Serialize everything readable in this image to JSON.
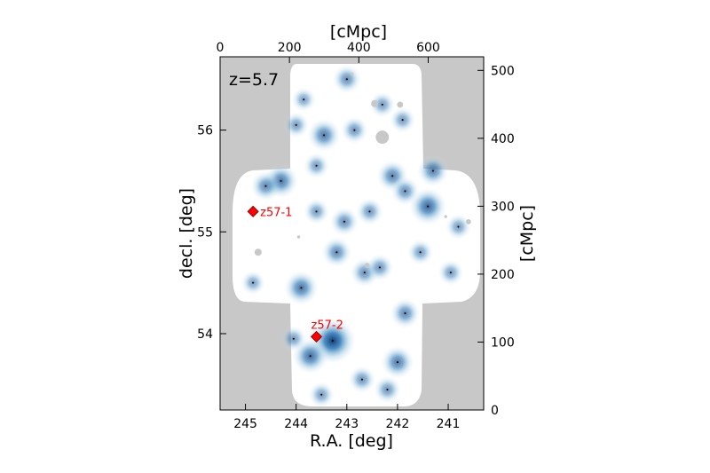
{
  "chart_data": {
    "type": "heatmap",
    "annotation": "z=5.7",
    "xlabel": "R.A. [deg]",
    "ylabel": "decl. [deg]",
    "x2label": "[cMpc]",
    "y2label": "[cMpc]",
    "xlim": [
      245.5,
      240.3
    ],
    "ylim": [
      53.25,
      56.72
    ],
    "x2lim": [
      0,
      760
    ],
    "y2lim": [
      0,
      520
    ],
    "x_ticks": [
      {
        "v": 245,
        "label": "245"
      },
      {
        "v": 244,
        "label": "244"
      },
      {
        "v": 243,
        "label": "243"
      },
      {
        "v": 242,
        "label": "242"
      },
      {
        "v": 241,
        "label": "241"
      }
    ],
    "y_ticks": [
      {
        "v": 54,
        "label": "54"
      },
      {
        "v": 55,
        "label": "55"
      },
      {
        "v": 56,
        "label": "56"
      }
    ],
    "x2_ticks": [
      {
        "v": 0,
        "label": "0"
      },
      {
        "v": 200,
        "label": "200"
      },
      {
        "v": 400,
        "label": "400"
      },
      {
        "v": 600,
        "label": "600"
      }
    ],
    "y2_ticks": [
      {
        "v": 0,
        "label": "0"
      },
      {
        "v": 100,
        "label": "100"
      },
      {
        "v": 200,
        "label": "200"
      },
      {
        "v": 300,
        "label": "300"
      },
      {
        "v": 400,
        "label": "400"
      },
      {
        "v": 500,
        "label": "500"
      }
    ],
    "highlighted_sources": [
      {
        "label": "z57-1",
        "ra": 244.85,
        "dec": 55.2,
        "color": "#ff0000"
      },
      {
        "label": "z57-2",
        "ra": 243.6,
        "dec": 53.97,
        "color": "#ff0000"
      }
    ],
    "density_peaks": [
      {
        "ra": 243.28,
        "dec": 53.93,
        "strength": 1.0
      },
      {
        "ra": 243.72,
        "dec": 53.78,
        "strength": 0.65
      },
      {
        "ra": 242.0,
        "dec": 53.72,
        "strength": 0.55
      },
      {
        "ra": 243.9,
        "dec": 54.45,
        "strength": 0.6
      },
      {
        "ra": 241.4,
        "dec": 55.25,
        "strength": 0.7
      },
      {
        "ra": 241.3,
        "dec": 55.6,
        "strength": 0.5
      },
      {
        "ra": 244.3,
        "dec": 55.5,
        "strength": 0.6
      },
      {
        "ra": 244.6,
        "dec": 55.45,
        "strength": 0.45
      },
      {
        "ra": 243.45,
        "dec": 55.95,
        "strength": 0.55
      },
      {
        "ra": 242.1,
        "dec": 55.55,
        "strength": 0.5
      },
      {
        "ra": 241.85,
        "dec": 55.4,
        "strength": 0.4
      },
      {
        "ra": 243.2,
        "dec": 54.8,
        "strength": 0.45
      },
      {
        "ra": 242.65,
        "dec": 54.6,
        "strength": 0.4
      },
      {
        "ra": 241.85,
        "dec": 54.2,
        "strength": 0.45
      },
      {
        "ra": 242.35,
        "dec": 54.65,
        "strength": 0.35
      },
      {
        "ra": 243.05,
        "dec": 55.1,
        "strength": 0.4
      },
      {
        "ra": 242.55,
        "dec": 55.2,
        "strength": 0.35
      },
      {
        "ra": 243.6,
        "dec": 55.65,
        "strength": 0.3
      },
      {
        "ra": 242.85,
        "dec": 56.0,
        "strength": 0.35
      },
      {
        "ra": 243.0,
        "dec": 56.5,
        "strength": 0.4
      },
      {
        "ra": 244.0,
        "dec": 56.05,
        "strength": 0.3
      },
      {
        "ra": 242.7,
        "dec": 53.55,
        "strength": 0.35
      },
      {
        "ra": 243.5,
        "dec": 53.4,
        "strength": 0.3
      },
      {
        "ra": 242.2,
        "dec": 53.45,
        "strength": 0.35
      },
      {
        "ra": 244.05,
        "dec": 53.95,
        "strength": 0.3
      },
      {
        "ra": 240.8,
        "dec": 55.05,
        "strength": 0.3
      },
      {
        "ra": 240.95,
        "dec": 54.6,
        "strength": 0.3
      },
      {
        "ra": 241.55,
        "dec": 54.8,
        "strength": 0.3
      },
      {
        "ra": 244.85,
        "dec": 54.5,
        "strength": 0.25
      },
      {
        "ra": 243.6,
        "dec": 55.2,
        "strength": 0.3
      },
      {
        "ra": 243.85,
        "dec": 56.3,
        "strength": 0.25
      },
      {
        "ra": 242.3,
        "dec": 56.25,
        "strength": 0.3
      },
      {
        "ra": 241.9,
        "dec": 56.1,
        "strength": 0.3
      }
    ],
    "masked_regions": [
      {
        "ra": 242.3,
        "dec": 55.93,
        "r": 0.13
      },
      {
        "ra": 242.45,
        "dec": 56.26,
        "r": 0.07
      },
      {
        "ra": 241.95,
        "dec": 56.25,
        "r": 0.06
      },
      {
        "ra": 244.75,
        "dec": 54.8,
        "r": 0.07
      },
      {
        "ra": 242.6,
        "dec": 54.67,
        "r": 0.05
      },
      {
        "ra": 241.3,
        "dec": 54.2,
        "r": 0.04
      },
      {
        "ra": 240.6,
        "dec": 55.1,
        "r": 0.05
      },
      {
        "ra": 241.05,
        "dec": 55.15,
        "r": 0.03
      },
      {
        "ra": 243.95,
        "dec": 54.95,
        "r": 0.03
      },
      {
        "ra": 242.9,
        "dec": 56.55,
        "r": 0.03
      }
    ],
    "colors": {
      "plot_background": "#c8c8c8",
      "survey_area": "#ffffff",
      "density_colormap": "Blues",
      "source_marker": "#ff0000"
    }
  }
}
